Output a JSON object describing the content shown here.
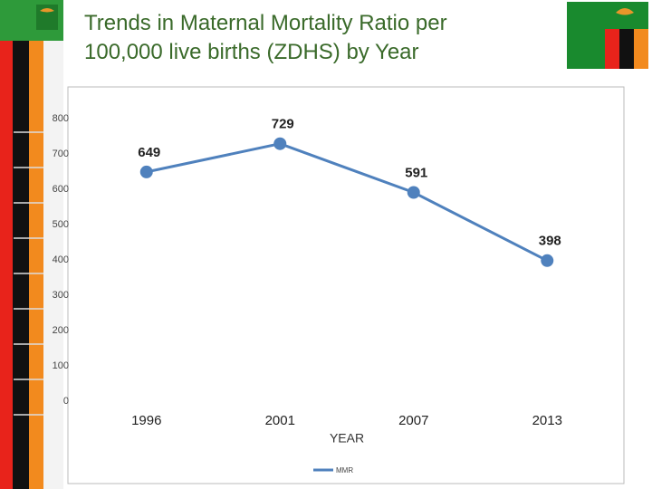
{
  "chart_data": {
    "type": "line",
    "title": "Trends in Maternal Mortality Ratio per 100,000 live births (ZDHS) by Year",
    "categories": [
      "1996",
      "2001",
      "2007",
      "2013"
    ],
    "series": [
      {
        "name": "MMR",
        "color": "#4f81bd",
        "values": [
          649,
          729,
          591,
          398
        ]
      }
    ],
    "x_label": "YEAR",
    "ylim": [
      0,
      800
    ],
    "yticks": [
      0,
      100,
      200,
      300,
      400,
      500,
      600,
      700,
      800
    ],
    "grid": false,
    "legend": "bottom"
  }
}
